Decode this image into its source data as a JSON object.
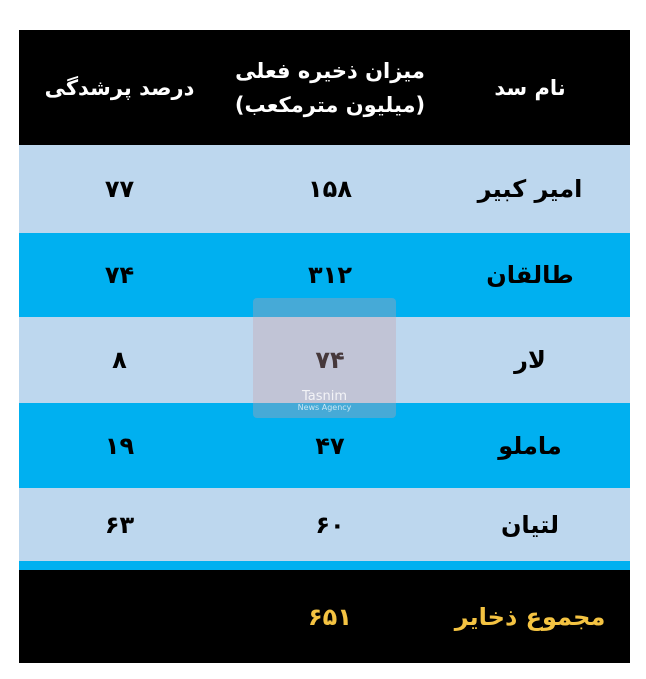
{
  "header": {
    "col_name": "نام سد",
    "col_storage_line1": "میزان ذخیره فعلی",
    "col_storage_line2": "(میلیون مترمکعب)",
    "col_percent": "درصد پرشدگی"
  },
  "rows": [
    {
      "name": "امیر کبیر",
      "storage": "۱۵۸",
      "percent": "۷۷"
    },
    {
      "name": "طالقان",
      "storage": "۳۱۲",
      "percent": "۷۴"
    },
    {
      "name": "لار",
      "storage": "۷۴",
      "percent": "۸"
    },
    {
      "name": "ماملو",
      "storage": "۴۷",
      "percent": "۱۹"
    },
    {
      "name": "لتیان",
      "storage": "۶۰",
      "percent": "۶۳"
    }
  ],
  "footer": {
    "label": "مجموع ذخایر",
    "total": "۶۵۱"
  },
  "watermark": {
    "name": "Tasnim",
    "sub": "News Agency"
  },
  "colors": {
    "header": "#000000",
    "row_light": "#bdd7ee",
    "row_cyan": "#00b0f0",
    "total_text": "#f4c342"
  }
}
